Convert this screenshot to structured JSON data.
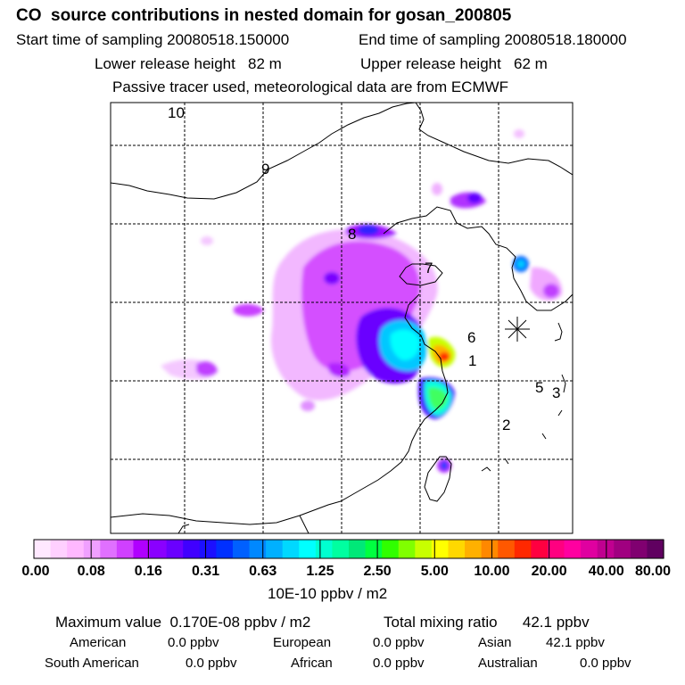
{
  "header": {
    "title": "CO  source contributions in nested domain for gosan_200805",
    "start_label": "Start time of sampling 20080518.150000",
    "end_label": "End time of sampling 20080518.180000",
    "lower_label": "Lower release height   82 m",
    "upper_label": "Upper release height   62 m",
    "tracer_note": "Passive tracer used, meteorological data are from ECMWF"
  },
  "map": {
    "trajectory_labels": [
      "10",
      "9",
      "8",
      "7",
      "6",
      "1",
      "5",
      "3",
      "2"
    ],
    "receptor_marker": "receptor-star"
  },
  "colorbar": {
    "tick_labels": [
      "0.00",
      "0.08",
      "0.16",
      "0.31",
      "0.63",
      "1.25",
      "2.50",
      "5.00",
      "10.00",
      "20.00",
      "40.00",
      "80.00"
    ],
    "units": "10E-10 ppbv / m2",
    "colors": [
      "#ffe8ff",
      "#ffd0ff",
      "#ffb8ff",
      "#f0a0ff",
      "#e070ff",
      "#d040ff",
      "#b000ff",
      "#8a00ff",
      "#6a00ff",
      "#4000ff",
      "#1c10ff",
      "#0030ff",
      "#0060ff",
      "#0088ff",
      "#00b0ff",
      "#00d8ff",
      "#00ffff",
      "#00ffd0",
      "#00ffa0",
      "#00e878",
      "#00ff40",
      "#30ff00",
      "#80ff00",
      "#c8ff00",
      "#ffff00",
      "#ffd800",
      "#ffb000",
      "#ff8800",
      "#ff5800",
      "#ff2800",
      "#ff0040",
      "#ff0080",
      "#ff00a0",
      "#e000a0",
      "#c00090",
      "#a00080",
      "#800070",
      "#600060"
    ]
  },
  "summary": {
    "max_label": "Maximum value  0.170E-08 ppbv / m2",
    "total_label": "Total mixing ratio      42.1 ppbv",
    "american_label": "American",
    "american_value": "0.0 ppbv",
    "european_label": "European",
    "european_value": "0.0 ppbv",
    "asian_label": "Asian",
    "asian_value": "42.1 ppbv",
    "south_american_label": "South American",
    "south_american_value": "0.0 ppbv",
    "african_label": "African",
    "african_value": "0.0 ppbv",
    "australian_label": "Australian",
    "australian_value": "0.0 ppbv"
  }
}
